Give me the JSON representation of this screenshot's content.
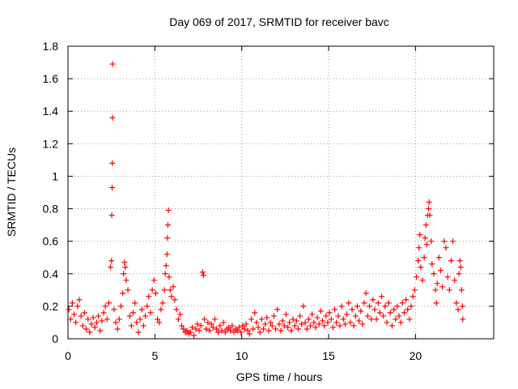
{
  "chart_data": {
    "type": "scatter",
    "title": "Day 069 of 2017, SRMTID for receiver bavc",
    "xlabel": "GPS time / hours",
    "ylabel": "SRMTID / TECUs",
    "xlim": [
      0,
      24.5
    ],
    "ylim": [
      0,
      1.8
    ],
    "xticks": [
      0,
      5,
      10,
      15,
      20
    ],
    "xtick_labels": [
      "0",
      "5",
      "10",
      "15",
      "20"
    ],
    "yticks": [
      0,
      0.2,
      0.4,
      0.6,
      0.8,
      1,
      1.2,
      1.4,
      1.6,
      1.8
    ],
    "ytick_labels": [
      "0",
      "0.2",
      "0.4",
      "0.6",
      "0.8",
      "1",
      "1.2",
      "1.4",
      "1.6",
      "1.8"
    ],
    "grid": true,
    "marker": "+",
    "marker_color": "#ff0000",
    "series": [
      {
        "name": "SRMTID",
        "points": [
          [
            0.05,
            0.18
          ],
          [
            0.15,
            0.12
          ],
          [
            0.25,
            0.22
          ],
          [
            0.35,
            0.15
          ],
          [
            0.45,
            0.1
          ],
          [
            0.55,
            0.2
          ],
          [
            0.65,
            0.24
          ],
          [
            0.75,
            0.14
          ],
          [
            0.85,
            0.08
          ],
          [
            0.95,
            0.16
          ],
          [
            1.05,
            0.06
          ],
          [
            1.15,
            0.12
          ],
          [
            1.25,
            0.04
          ],
          [
            1.35,
            0.09
          ],
          [
            1.45,
            0.13
          ],
          [
            1.55,
            0.07
          ],
          [
            1.65,
            0.1
          ],
          [
            1.75,
            0.14
          ],
          [
            1.85,
            0.05
          ],
          [
            1.95,
            0.11
          ],
          [
            2.05,
            0.16
          ],
          [
            2.15,
            0.2
          ],
          [
            2.25,
            0.12
          ],
          [
            2.35,
            0.22
          ],
          [
            2.45,
            0.44
          ],
          [
            2.5,
            0.48
          ],
          [
            2.52,
            0.76
          ],
          [
            2.54,
            0.93
          ],
          [
            2.55,
            1.08
          ],
          [
            2.56,
            1.36
          ],
          [
            2.57,
            1.69
          ],
          [
            2.65,
            0.18
          ],
          [
            2.75,
            0.1
          ],
          [
            2.85,
            0.06
          ],
          [
            2.95,
            0.12
          ],
          [
            3.05,
            0.2
          ],
          [
            3.15,
            0.28
          ],
          [
            3.2,
            0.4
          ],
          [
            3.25,
            0.47
          ],
          [
            3.3,
            0.44
          ],
          [
            3.35,
            0.36
          ],
          [
            3.45,
            0.3
          ],
          [
            3.55,
            0.14
          ],
          [
            3.65,
            0.08
          ],
          [
            3.75,
            0.16
          ],
          [
            3.85,
            0.22
          ],
          [
            3.95,
            0.1
          ],
          [
            4.05,
            0.04
          ],
          [
            4.15,
            0.12
          ],
          [
            4.25,
            0.18
          ],
          [
            4.35,
            0.08
          ],
          [
            4.45,
            0.14
          ],
          [
            4.55,
            0.2
          ],
          [
            4.65,
            0.26
          ],
          [
            4.75,
            0.16
          ],
          [
            4.85,
            0.3
          ],
          [
            4.95,
            0.36
          ],
          [
            5.05,
            0.28
          ],
          [
            5.15,
            0.12
          ],
          [
            5.25,
            0.1
          ],
          [
            5.35,
            0.18
          ],
          [
            5.45,
            0.22
          ],
          [
            5.55,
            0.3
          ],
          [
            5.6,
            0.4
          ],
          [
            5.65,
            0.45
          ],
          [
            5.7,
            0.52
          ],
          [
            5.72,
            0.62
          ],
          [
            5.75,
            0.7
          ],
          [
            5.78,
            0.79
          ],
          [
            5.82,
            0.38
          ],
          [
            5.88,
            0.3
          ],
          [
            5.95,
            0.26
          ],
          [
            6.05,
            0.32
          ],
          [
            6.15,
            0.24
          ],
          [
            6.25,
            0.18
          ],
          [
            6.35,
            0.12
          ],
          [
            6.45,
            0.15
          ],
          [
            6.55,
            0.08
          ],
          [
            6.65,
            0.06
          ],
          [
            6.75,
            0.04
          ],
          [
            6.85,
            0.05
          ],
          [
            6.95,
            0.03
          ],
          [
            7.05,
            0.04
          ],
          [
            7.15,
            0.07
          ],
          [
            7.25,
            0.02
          ],
          [
            7.35,
            0.06
          ],
          [
            7.45,
            0.09
          ],
          [
            7.55,
            0.05
          ],
          [
            7.65,
            0.08
          ],
          [
            7.75,
            0.41
          ],
          [
            7.8,
            0.39
          ],
          [
            7.85,
            0.12
          ],
          [
            7.95,
            0.06
          ],
          [
            8.05,
            0.1
          ],
          [
            8.15,
            0.05
          ],
          [
            8.25,
            0.09
          ],
          [
            8.35,
            0.07
          ],
          [
            8.45,
            0.12
          ],
          [
            8.55,
            0.06
          ],
          [
            8.65,
            0.04
          ],
          [
            8.75,
            0.08
          ],
          [
            8.85,
            0.05
          ],
          [
            8.95,
            0.1
          ],
          [
            9.05,
            0.04
          ],
          [
            9.15,
            0.06
          ],
          [
            9.25,
            0.07
          ],
          [
            9.35,
            0.05
          ],
          [
            9.45,
            0.08
          ],
          [
            9.55,
            0.04
          ],
          [
            9.65,
            0.06
          ],
          [
            9.75,
            0.05
          ],
          [
            9.85,
            0.07
          ],
          [
            9.95,
            0.04
          ],
          [
            10.05,
            0.08
          ],
          [
            10.15,
            0.06
          ],
          [
            10.25,
            0.09
          ],
          [
            10.35,
            0.05
          ],
          [
            10.45,
            0.03
          ],
          [
            10.55,
            0.12
          ],
          [
            10.65,
            0.06
          ],
          [
            10.75,
            0.16
          ],
          [
            10.85,
            0.1
          ],
          [
            10.95,
            0.07
          ],
          [
            11.05,
            0.04
          ],
          [
            11.15,
            0.12
          ],
          [
            11.25,
            0.06
          ],
          [
            11.35,
            0.09
          ],
          [
            11.45,
            0.13
          ],
          [
            11.55,
            0.05
          ],
          [
            11.65,
            0.1
          ],
          [
            11.75,
            0.08
          ],
          [
            11.85,
            0.14
          ],
          [
            11.95,
            0.06
          ],
          [
            12.05,
            0.18
          ],
          [
            12.15,
            0.09
          ],
          [
            12.25,
            0.05
          ],
          [
            12.35,
            0.11
          ],
          [
            12.45,
            0.08
          ],
          [
            12.55,
            0.15
          ],
          [
            12.65,
            0.07
          ],
          [
            12.75,
            0.1
          ],
          [
            12.85,
            0.05
          ],
          [
            12.95,
            0.12
          ],
          [
            13.05,
            0.08
          ],
          [
            13.15,
            0.11
          ],
          [
            13.25,
            0.06
          ],
          [
            13.35,
            0.14
          ],
          [
            13.45,
            0.09
          ],
          [
            13.55,
            0.2
          ],
          [
            13.65,
            0.1
          ],
          [
            13.75,
            0.06
          ],
          [
            13.85,
            0.12
          ],
          [
            13.95,
            0.08
          ],
          [
            14.05,
            0.15
          ],
          [
            14.15,
            0.1
          ],
          [
            14.25,
            0.07
          ],
          [
            14.35,
            0.13
          ],
          [
            14.45,
            0.09
          ],
          [
            14.55,
            0.17
          ],
          [
            14.65,
            0.11
          ],
          [
            14.75,
            0.08
          ],
          [
            14.85,
            0.14
          ],
          [
            14.95,
            0.1
          ],
          [
            15.05,
            0.16
          ],
          [
            15.15,
            0.12
          ],
          [
            15.25,
            0.07
          ],
          [
            15.35,
            0.18
          ],
          [
            15.45,
            0.1
          ],
          [
            15.55,
            0.14
          ],
          [
            15.65,
            0.08
          ],
          [
            15.75,
            0.2
          ],
          [
            15.85,
            0.12
          ],
          [
            15.95,
            0.09
          ],
          [
            16.05,
            0.15
          ],
          [
            16.15,
            0.22
          ],
          [
            16.25,
            0.1
          ],
          [
            16.35,
            0.18
          ],
          [
            16.45,
            0.08
          ],
          [
            16.55,
            0.14
          ],
          [
            16.65,
            0.2
          ],
          [
            16.75,
            0.11
          ],
          [
            16.85,
            0.17
          ],
          [
            16.95,
            0.09
          ],
          [
            17.05,
            0.22
          ],
          [
            17.15,
            0.28
          ],
          [
            17.25,
            0.14
          ],
          [
            17.35,
            0.2
          ],
          [
            17.45,
            0.12
          ],
          [
            17.55,
            0.24
          ],
          [
            17.65,
            0.18
          ],
          [
            17.75,
            0.12
          ],
          [
            17.85,
            0.22
          ],
          [
            17.95,
            0.16
          ],
          [
            18.05,
            0.26
          ],
          [
            18.15,
            0.14
          ],
          [
            18.25,
            0.2
          ],
          [
            18.35,
            0.1
          ],
          [
            18.45,
            0.22
          ],
          [
            18.55,
            0.16
          ],
          [
            18.65,
            0.08
          ],
          [
            18.75,
            0.18
          ],
          [
            18.85,
            0.12
          ],
          [
            18.95,
            0.2
          ],
          [
            19.05,
            0.14
          ],
          [
            19.15,
            0.1
          ],
          [
            19.25,
            0.22
          ],
          [
            19.35,
            0.16
          ],
          [
            19.45,
            0.24
          ],
          [
            19.55,
            0.18
          ],
          [
            19.65,
            0.12
          ],
          [
            19.75,
            0.2
          ],
          [
            19.85,
            0.26
          ],
          [
            19.95,
            0.3
          ],
          [
            20.05,
            0.38
          ],
          [
            20.15,
            0.48
          ],
          [
            20.2,
            0.56
          ],
          [
            20.25,
            0.64
          ],
          [
            20.3,
            0.44
          ],
          [
            20.4,
            0.36
          ],
          [
            20.5,
            0.5
          ],
          [
            20.55,
            0.62
          ],
          [
            20.6,
            0.7
          ],
          [
            20.65,
            0.58
          ],
          [
            20.7,
            0.76
          ],
          [
            20.75,
            0.8
          ],
          [
            20.78,
            0.84
          ],
          [
            20.82,
            0.76
          ],
          [
            20.9,
            0.6
          ],
          [
            20.95,
            0.46
          ],
          [
            21.05,
            0.4
          ],
          [
            21.15,
            0.3
          ],
          [
            21.2,
            0.22
          ],
          [
            21.25,
            0.34
          ],
          [
            21.35,
            0.5
          ],
          [
            21.45,
            0.42
          ],
          [
            21.55,
            0.32
          ],
          [
            21.65,
            0.6
          ],
          [
            21.75,
            0.56
          ],
          [
            21.85,
            0.38
          ],
          [
            21.95,
            0.3
          ],
          [
            22.05,
            0.48
          ],
          [
            22.15,
            0.6
          ],
          [
            22.25,
            0.36
          ],
          [
            22.35,
            0.22
          ],
          [
            22.45,
            0.18
          ],
          [
            22.5,
            0.4
          ],
          [
            22.55,
            0.48
          ],
          [
            22.6,
            0.44
          ],
          [
            22.65,
            0.3
          ],
          [
            22.7,
            0.2
          ],
          [
            22.72,
            0.12
          ]
        ]
      }
    ]
  }
}
